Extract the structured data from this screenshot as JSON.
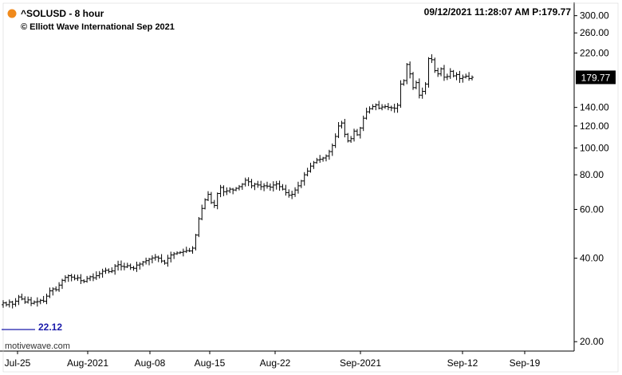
{
  "header": {
    "title": "^SOLUSD - 8 hour",
    "copyright": "© Elliott Wave International Sep 2021",
    "datetime_price": "09/12/2021 11:28:07 AM P:179.77",
    "status_color": "#f08a1c"
  },
  "footer": {
    "watermark": "motivewave.com"
  },
  "chart_data": {
    "type": "ohlc",
    "title": "^SOLUSD - 8 hour",
    "y_scale": "log",
    "ylim": [
      18.5,
      335
    ],
    "y_ticks": [
      {
        "value": 300,
        "label": "300.00"
      },
      {
        "value": 260,
        "label": "260.00"
      },
      {
        "value": 220,
        "label": "220.00"
      },
      {
        "value": 140,
        "label": "140.00"
      },
      {
        "value": 120,
        "label": "120.00"
      },
      {
        "value": 100,
        "label": "100.00"
      },
      {
        "value": 80,
        "label": "80.00"
      },
      {
        "value": 60,
        "label": "60.00"
      },
      {
        "value": 40,
        "label": "40.00"
      },
      {
        "value": 20,
        "label": "20.00"
      }
    ],
    "x_ticks": [
      "Jul-25",
      "Aug-2021",
      "Aug-08",
      "Aug-15",
      "Aug-22",
      "Sep-2021",
      "Sep-12",
      "Sep-19"
    ],
    "last_price": {
      "value": 179.77,
      "label": "179.77"
    },
    "level_line": {
      "value": 22.12,
      "label": "22.12",
      "color": "#1a1aaa"
    },
    "bar_color": "#000000",
    "grid": false,
    "legend": "none",
    "closes": [
      27.6,
      27.2,
      27.8,
      27.3,
      28.0,
      29.0,
      28.5,
      27.8,
      28.3,
      27.5,
      27.8,
      27.9,
      28.2,
      28.0,
      29.2,
      30.5,
      31.0,
      30.8,
      32.0,
      33.3,
      34.1,
      34.6,
      34.2,
      33.8,
      34.0,
      33.2,
      33.0,
      33.8,
      34.3,
      34.0,
      34.6,
      35.2,
      35.9,
      36.2,
      35.8,
      36.0,
      37.5,
      37.9,
      37.4,
      37.2,
      37.6,
      37.0,
      36.8,
      37.8,
      38.1,
      38.8,
      39.2,
      39.7,
      40.1,
      40.4,
      40.0,
      39.1,
      38.4,
      40.0,
      41.1,
      41.5,
      41.8,
      42.0,
      42.3,
      42.6,
      42.5,
      43.5,
      48.5,
      55.5,
      60.5,
      65.0,
      68.0,
      63.5,
      62.0,
      68.5,
      72.0,
      69.5,
      70.0,
      71.0,
      70.5,
      71.5,
      72.5,
      74.0,
      76.5,
      75.5,
      73.0,
      74.0,
      73.5,
      72.5,
      73.0,
      72.8,
      72.2,
      73.5,
      74.2,
      72.5,
      71.0,
      69.0,
      67.5,
      68.0,
      70.5,
      73.0,
      76.0,
      80.0,
      82.5,
      86.0,
      88.5,
      90.5,
      91.0,
      92.0,
      93.5,
      97.0,
      102.0,
      110.0,
      120.0,
      123.0,
      112.0,
      106.0,
      108.0,
      115.0,
      111.5,
      118.0,
      128.0,
      135.0,
      138.5,
      141.0,
      143.0,
      139.0,
      140.5,
      141.0,
      140.0,
      139.5,
      139.0,
      142.5,
      170.0,
      175.0,
      200.0,
      185.0,
      165.0,
      172.0,
      155.0,
      160.0,
      170.0,
      210.0,
      208.0,
      190.0,
      185.0,
      193.0,
      180.0,
      181.0,
      189.0,
      182.0,
      184.0,
      178.0,
      180.0,
      181.5,
      178.0,
      179.77
    ]
  }
}
